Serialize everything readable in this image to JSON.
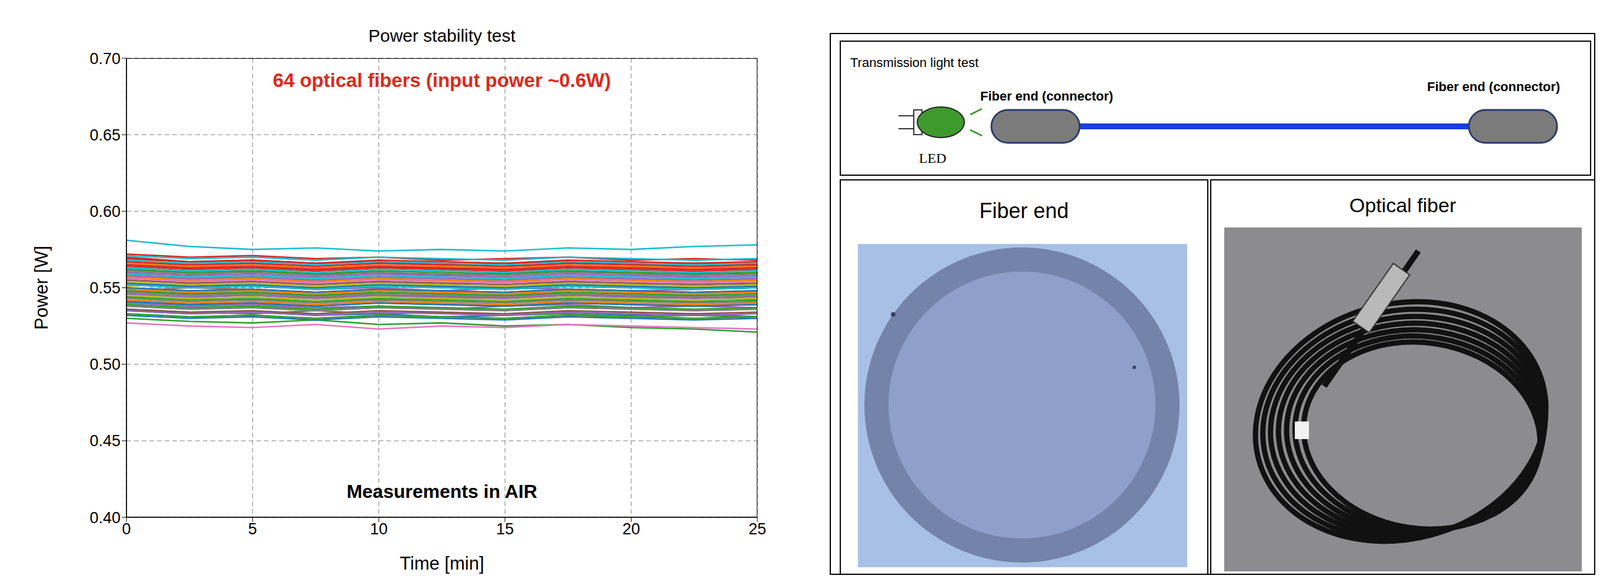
{
  "chart_data": {
    "type": "line",
    "title": "Power stability test",
    "annotations": [
      "64 optical fibers (input power ~0.6W)",
      "Measurements in AIR"
    ],
    "x_label": "Time [min]",
    "y_label": "Power [W]",
    "xlim": [
      0,
      25
    ],
    "xticks": [
      0,
      5,
      10,
      15,
      20,
      25
    ],
    "ylim": [
      0.4,
      0.7
    ],
    "yticks": [
      {
        "value": 0.4,
        "label": "0.40"
      },
      {
        "value": 0.45,
        "label": "0.45"
      },
      {
        "value": 0.5,
        "label": "0.50"
      },
      {
        "value": 0.55,
        "label": "0.55"
      },
      {
        "value": 0.6,
        "label": "0.60"
      },
      {
        "value": 0.65,
        "label": "0.65"
      },
      {
        "value": 0.7,
        "label": "0.70"
      }
    ],
    "grid": true,
    "x": [
      0,
      2.5,
      5,
      7.5,
      10,
      12.5,
      15,
      17.5,
      20,
      22.5,
      25
    ],
    "series": [
      {
        "color": "#1f77b4",
        "values": [
          0.545,
          0.543,
          0.546,
          0.544,
          0.545,
          0.543,
          0.544,
          0.546,
          0.543,
          0.544,
          0.542
        ]
      },
      {
        "color": "#ff7f0e",
        "values": [
          0.56,
          0.558,
          0.561,
          0.559,
          0.56,
          0.558,
          0.559,
          0.561,
          0.559,
          0.558,
          0.56
        ]
      },
      {
        "color": "#2ca02c",
        "values": [
          0.53,
          0.528,
          0.527,
          0.529,
          0.526,
          0.527,
          0.525,
          0.526,
          0.524,
          0.523,
          0.521
        ]
      },
      {
        "color": "#d62728",
        "values": [
          0.57,
          0.567,
          0.568,
          0.566,
          0.567,
          0.565,
          0.566,
          0.567,
          0.565,
          0.566,
          0.565
        ]
      },
      {
        "color": "#9467bd",
        "values": [
          0.552,
          0.55,
          0.551,
          0.549,
          0.55,
          0.548,
          0.55,
          0.549,
          0.548,
          0.549,
          0.55
        ]
      },
      {
        "color": "#8c564b",
        "values": [
          0.548,
          0.546,
          0.547,
          0.545,
          0.546,
          0.544,
          0.545,
          0.546,
          0.544,
          0.545,
          0.544
        ]
      },
      {
        "color": "#e377c2",
        "values": [
          0.527,
          0.525,
          0.524,
          0.526,
          0.523,
          0.525,
          0.524,
          0.526,
          0.525,
          0.524,
          0.523
        ]
      },
      {
        "color": "#7f7f7f",
        "values": [
          0.556,
          0.554,
          0.555,
          0.553,
          0.554,
          0.552,
          0.554,
          0.553,
          0.552,
          0.553,
          0.552
        ]
      },
      {
        "color": "#bcbd22",
        "values": [
          0.558,
          0.556,
          0.557,
          0.555,
          0.556,
          0.554,
          0.556,
          0.557,
          0.555,
          0.556,
          0.555
        ]
      },
      {
        "color": "#17becf",
        "values": [
          0.581,
          0.577,
          0.575,
          0.576,
          0.574,
          0.575,
          0.574,
          0.576,
          0.575,
          0.577,
          0.578
        ]
      },
      {
        "color": "#1f77b4",
        "values": [
          0.535,
          0.533,
          0.534,
          0.532,
          0.533,
          0.531,
          0.532,
          0.534,
          0.532,
          0.533,
          0.531
        ]
      },
      {
        "color": "#ff7f0e",
        "values": [
          0.553,
          0.551,
          0.552,
          0.55,
          0.552,
          0.55,
          0.551,
          0.552,
          0.55,
          0.551,
          0.55
        ]
      },
      {
        "color": "#2ca02c",
        "values": [
          0.536,
          0.534,
          0.533,
          0.535,
          0.533,
          0.534,
          0.532,
          0.533,
          0.531,
          0.532,
          0.531
        ]
      },
      {
        "color": "#d62728",
        "values": [
          0.566,
          0.564,
          0.565,
          0.563,
          0.564,
          0.562,
          0.564,
          0.565,
          0.563,
          0.564,
          0.563
        ]
      },
      {
        "color": "#9467bd",
        "values": [
          0.54,
          0.538,
          0.539,
          0.537,
          0.538,
          0.536,
          0.538,
          0.539,
          0.537,
          0.538,
          0.537
        ]
      },
      {
        "color": "#8c564b",
        "values": [
          0.562,
          0.56,
          0.561,
          0.559,
          0.56,
          0.558,
          0.56,
          0.561,
          0.559,
          0.56,
          0.559
        ]
      },
      {
        "color": "#e377c2",
        "values": [
          0.545,
          0.543,
          0.542,
          0.544,
          0.542,
          0.543,
          0.541,
          0.543,
          0.542,
          0.541,
          0.54
        ]
      },
      {
        "color": "#7f7f7f",
        "values": [
          0.548,
          0.55,
          0.549,
          0.547,
          0.549,
          0.548,
          0.547,
          0.549,
          0.548,
          0.547,
          0.548
        ]
      },
      {
        "color": "#bcbd22",
        "values": [
          0.551,
          0.553,
          0.552,
          0.55,
          0.552,
          0.551,
          0.55,
          0.552,
          0.551,
          0.55,
          0.552
        ]
      },
      {
        "color": "#17becf",
        "values": [
          0.568,
          0.566,
          0.567,
          0.565,
          0.567,
          0.566,
          0.565,
          0.567,
          0.566,
          0.565,
          0.566
        ]
      },
      {
        "color": "#1f77b4",
        "values": [
          0.557,
          0.555,
          0.556,
          0.554,
          0.556,
          0.555,
          0.554,
          0.556,
          0.555,
          0.554,
          0.555
        ]
      },
      {
        "color": "#ff7f0e",
        "values": [
          0.547,
          0.545,
          0.546,
          0.544,
          0.546,
          0.545,
          0.544,
          0.546,
          0.545,
          0.544,
          0.545
        ]
      },
      {
        "color": "#2ca02c",
        "values": [
          0.562,
          0.56,
          0.561,
          0.559,
          0.561,
          0.56,
          0.559,
          0.561,
          0.56,
          0.559,
          0.56
        ]
      },
      {
        "color": "#d62728",
        "values": [
          0.572,
          0.57,
          0.571,
          0.569,
          0.57,
          0.568,
          0.569,
          0.57,
          0.568,
          0.569,
          0.568
        ]
      },
      {
        "color": "#9467bd",
        "values": [
          0.558,
          0.556,
          0.557,
          0.555,
          0.557,
          0.556,
          0.555,
          0.557,
          0.556,
          0.555,
          0.556
        ]
      },
      {
        "color": "#8c564b",
        "values": [
          0.541,
          0.539,
          0.54,
          0.538,
          0.54,
          0.539,
          0.538,
          0.54,
          0.539,
          0.538,
          0.539
        ]
      },
      {
        "color": "#e377c2",
        "values": [
          0.55,
          0.548,
          0.549,
          0.547,
          0.549,
          0.548,
          0.547,
          0.549,
          0.548,
          0.547,
          0.548
        ]
      },
      {
        "color": "#7f7f7f",
        "values": [
          0.543,
          0.541,
          0.542,
          0.54,
          0.542,
          0.541,
          0.54,
          0.542,
          0.541,
          0.54,
          0.541
        ]
      },
      {
        "color": "#bcbd22",
        "values": [
          0.565,
          0.563,
          0.564,
          0.562,
          0.564,
          0.563,
          0.562,
          0.564,
          0.563,
          0.562,
          0.563
        ]
      },
      {
        "color": "#17becf",
        "values": [
          0.571,
          0.569,
          0.57,
          0.568,
          0.57,
          0.569,
          0.568,
          0.57,
          0.569,
          0.568,
          0.569
        ]
      },
      {
        "color": "#1f77b4",
        "values": [
          0.553,
          0.551,
          0.552,
          0.55,
          0.552,
          0.551,
          0.55,
          0.552,
          0.551,
          0.55,
          0.551
        ]
      },
      {
        "color": "#ff7f0e",
        "values": [
          0.566,
          0.564,
          0.565,
          0.563,
          0.565,
          0.564,
          0.563,
          0.565,
          0.564,
          0.563,
          0.564
        ]
      },
      {
        "color": "#2ca02c",
        "values": [
          0.544,
          0.542,
          0.543,
          0.541,
          0.543,
          0.542,
          0.541,
          0.543,
          0.542,
          0.541,
          0.542
        ]
      },
      {
        "color": "#d62728",
        "values": [
          0.569,
          0.567,
          0.568,
          0.566,
          0.568,
          0.567,
          0.566,
          0.568,
          0.567,
          0.566,
          0.567
        ]
      },
      {
        "color": "#9467bd",
        "values": [
          0.546,
          0.544,
          0.545,
          0.543,
          0.545,
          0.544,
          0.543,
          0.545,
          0.544,
          0.543,
          0.544
        ]
      },
      {
        "color": "#8c564b",
        "values": [
          0.555,
          0.553,
          0.554,
          0.552,
          0.554,
          0.553,
          0.552,
          0.554,
          0.553,
          0.552,
          0.553
        ]
      },
      {
        "color": "#e377c2",
        "values": [
          0.538,
          0.536,
          0.537,
          0.535,
          0.537,
          0.536,
          0.535,
          0.537,
          0.536,
          0.535,
          0.536
        ]
      },
      {
        "color": "#7f7f7f",
        "values": [
          0.561,
          0.559,
          0.56,
          0.558,
          0.56,
          0.559,
          0.558,
          0.56,
          0.559,
          0.558,
          0.559
        ]
      },
      {
        "color": "#bcbd22",
        "values": [
          0.549,
          0.547,
          0.548,
          0.546,
          0.548,
          0.547,
          0.546,
          0.548,
          0.547,
          0.546,
          0.547
        ]
      },
      {
        "color": "#17becf",
        "values": [
          0.559,
          0.557,
          0.558,
          0.556,
          0.558,
          0.557,
          0.556,
          0.558,
          0.557,
          0.556,
          0.557
        ]
      },
      {
        "color": "#1f77b4",
        "values": [
          0.532,
          0.53,
          0.531,
          0.529,
          0.531,
          0.53,
          0.529,
          0.531,
          0.53,
          0.529,
          0.53
        ]
      },
      {
        "color": "#ff7f0e",
        "values": [
          0.557,
          0.555,
          0.556,
          0.554,
          0.556,
          0.555,
          0.554,
          0.556,
          0.555,
          0.554,
          0.555
        ]
      },
      {
        "color": "#2ca02c",
        "values": [
          0.548,
          0.546,
          0.547,
          0.545,
          0.547,
          0.546,
          0.545,
          0.547,
          0.546,
          0.545,
          0.546
        ]
      },
      {
        "color": "#d62728",
        "values": [
          0.564,
          0.562,
          0.563,
          0.561,
          0.563,
          0.562,
          0.561,
          0.563,
          0.562,
          0.561,
          0.562
        ]
      },
      {
        "color": "#9467bd",
        "values": [
          0.535,
          0.533,
          0.534,
          0.532,
          0.534,
          0.533,
          0.532,
          0.534,
          0.533,
          0.532,
          0.533
        ]
      },
      {
        "color": "#8c564b",
        "values": [
          0.552,
          0.55,
          0.551,
          0.549,
          0.551,
          0.55,
          0.549,
          0.551,
          0.55,
          0.549,
          0.55
        ]
      },
      {
        "color": "#e377c2",
        "values": [
          0.556,
          0.554,
          0.555,
          0.553,
          0.555,
          0.554,
          0.553,
          0.555,
          0.554,
          0.553,
          0.554
        ]
      },
      {
        "color": "#7f7f7f",
        "values": [
          0.538,
          0.536,
          0.537,
          0.535,
          0.537,
          0.536,
          0.535,
          0.537,
          0.536,
          0.535,
          0.536
        ]
      },
      {
        "color": "#bcbd22",
        "values": [
          0.545,
          0.543,
          0.544,
          0.542,
          0.544,
          0.543,
          0.542,
          0.544,
          0.543,
          0.542,
          0.543
        ]
      },
      {
        "color": "#17becf",
        "values": [
          0.563,
          0.561,
          0.562,
          0.56,
          0.562,
          0.561,
          0.56,
          0.562,
          0.561,
          0.56,
          0.561
        ]
      },
      {
        "color": "#1f77b4",
        "values": [
          0.55,
          0.548,
          0.549,
          0.547,
          0.549,
          0.548,
          0.547,
          0.549,
          0.548,
          0.547,
          0.548
        ]
      },
      {
        "color": "#ff7f0e",
        "values": [
          0.542,
          0.54,
          0.541,
          0.539,
          0.541,
          0.54,
          0.539,
          0.541,
          0.54,
          0.539,
          0.54
        ]
      },
      {
        "color": "#2ca02c",
        "values": [
          0.539,
          0.537,
          0.538,
          0.536,
          0.538,
          0.537,
          0.536,
          0.538,
          0.537,
          0.536,
          0.537
        ]
      },
      {
        "color": "#d62728",
        "values": [
          0.567,
          0.565,
          0.566,
          0.564,
          0.566,
          0.565,
          0.564,
          0.566,
          0.565,
          0.564,
          0.565
        ]
      },
      {
        "color": "#9467bd",
        "values": [
          0.56,
          0.558,
          0.559,
          0.557,
          0.559,
          0.558,
          0.557,
          0.559,
          0.558,
          0.557,
          0.558
        ]
      },
      {
        "color": "#8c564b",
        "values": [
          0.536,
          0.534,
          0.535,
          0.533,
          0.535,
          0.534,
          0.533,
          0.535,
          0.534,
          0.533,
          0.534
        ]
      },
      {
        "color": "#e377c2",
        "values": [
          0.533,
          0.531,
          0.532,
          0.53,
          0.532,
          0.531,
          0.53,
          0.532,
          0.531,
          0.53,
          0.531
        ]
      },
      {
        "color": "#7f7f7f",
        "values": [
          0.547,
          0.545,
          0.546,
          0.544,
          0.546,
          0.545,
          0.544,
          0.546,
          0.545,
          0.544,
          0.545
        ]
      },
      {
        "color": "#bcbd22",
        "values": [
          0.554,
          0.552,
          0.553,
          0.551,
          0.553,
          0.552,
          0.551,
          0.553,
          0.552,
          0.551,
          0.552
        ]
      },
      {
        "color": "#17becf",
        "values": [
          0.552,
          0.55,
          0.551,
          0.549,
          0.551,
          0.55,
          0.549,
          0.551,
          0.55,
          0.549,
          0.55
        ]
      },
      {
        "color": "#1f77b4",
        "values": [
          0.541,
          0.539,
          0.54,
          0.538,
          0.54,
          0.539,
          0.538,
          0.54,
          0.539,
          0.538,
          0.539
        ]
      },
      {
        "color": "#ff7f0e",
        "values": [
          0.549,
          0.547,
          0.548,
          0.546,
          0.548,
          0.547,
          0.546,
          0.548,
          0.547,
          0.546,
          0.547
        ]
      },
      {
        "color": "#2ca02c",
        "values": [
          0.533,
          0.531,
          0.532,
          0.53,
          0.532,
          0.531,
          0.53,
          0.532,
          0.531,
          0.53,
          0.531
        ]
      },
      {
        "color": "#d62728",
        "values": [
          0.565,
          0.563,
          0.564,
          0.562,
          0.564,
          0.563,
          0.562,
          0.564,
          0.563,
          0.562,
          0.563
        ]
      }
    ]
  },
  "diagram": {
    "title": "Transmission light test",
    "source": "LED",
    "connectors": [
      "Fiber end (connector)",
      "Fiber end (connector)"
    ]
  },
  "panels": [
    "Fiber end",
    "Optical fiber"
  ]
}
